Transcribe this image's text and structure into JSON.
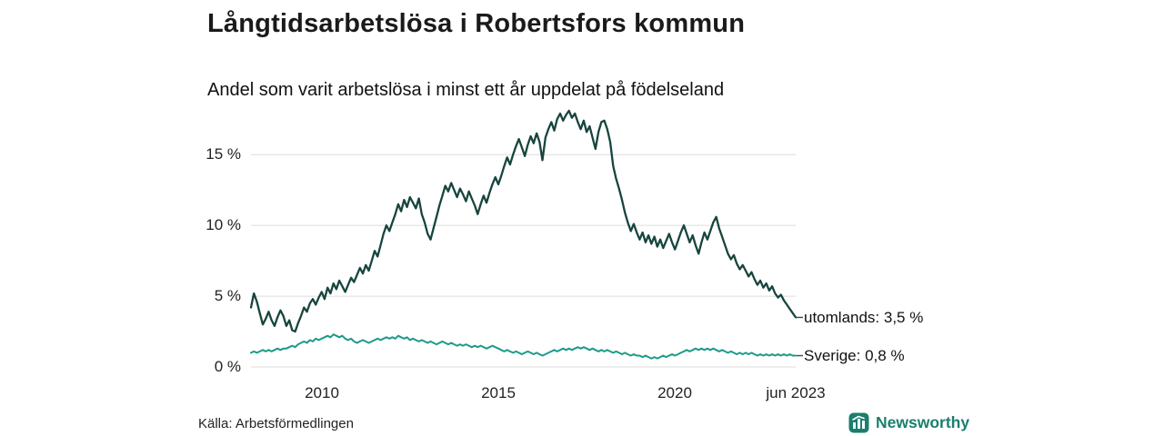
{
  "header": {
    "title": "Långtidsarbetslösa i Robertsfors kommun",
    "subtitle": "Andel som varit arbetslösa i minst ett år uppdelat på födelseland"
  },
  "footer": {
    "source": "Källa: Arbetsförmedlingen",
    "brand": "Newsworthy"
  },
  "colors": {
    "utomlands_line": "#17453e",
    "sverige_line": "#1d9a87",
    "grid": "#dcdcdc",
    "brand": "#1b7e6e",
    "end_tick": "#444444"
  },
  "chart_data": {
    "type": "line",
    "title": "Långtidsarbetslösa i Robertsfors kommun",
    "subtitle": "Andel som varit arbetslösa i minst ett år uppdelat på födelseland",
    "x_start": "2008-01",
    "x_end": "2023-06",
    "ylim": [
      0,
      18.35
    ],
    "grid": true,
    "y_ticks": [
      {
        "label": "0 %",
        "value": 0
      },
      {
        "label": "5 %",
        "value": 5
      },
      {
        "label": "10 %",
        "value": 10
      },
      {
        "label": "15 %",
        "value": 15
      }
    ],
    "x_ticks": [
      {
        "label": "2010",
        "index": 24
      },
      {
        "label": "2015",
        "index": 84
      },
      {
        "label": "2020",
        "index": 144
      },
      {
        "label": "jun 2023",
        "index": 185
      }
    ],
    "series": [
      {
        "name": "utomlands",
        "label": "utomlands: 3,5 %",
        "end_value": 3.5,
        "color": "#17453e",
        "values": [
          4.2,
          5.2,
          4.6,
          3.8,
          3.0,
          3.4,
          3.9,
          3.3,
          2.9,
          3.5,
          4.0,
          3.6,
          2.9,
          3.3,
          2.6,
          2.5,
          3.1,
          3.6,
          4.2,
          3.9,
          4.5,
          4.8,
          4.4,
          4.9,
          5.3,
          4.8,
          5.6,
          5.2,
          5.9,
          5.5,
          6.1,
          5.7,
          5.3,
          5.8,
          6.3,
          6.0,
          6.5,
          7.0,
          6.6,
          7.2,
          6.8,
          7.5,
          8.2,
          7.8,
          8.6,
          9.4,
          10.0,
          9.6,
          10.2,
          10.8,
          11.5,
          11.0,
          11.8,
          11.3,
          12.0,
          11.6,
          11.2,
          11.9,
          10.8,
          10.2,
          9.4,
          9.0,
          9.8,
          10.6,
          11.4,
          12.1,
          12.8,
          12.4,
          13.0,
          12.5,
          12.0,
          12.6,
          12.2,
          11.7,
          12.4,
          11.9,
          11.4,
          10.8,
          11.5,
          12.1,
          11.6,
          12.3,
          12.9,
          13.4,
          12.9,
          13.5,
          14.2,
          14.8,
          14.3,
          15.0,
          15.6,
          16.1,
          15.5,
          14.9,
          15.7,
          16.3,
          15.8,
          16.5,
          15.9,
          14.6,
          16.2,
          16.8,
          17.3,
          16.7,
          17.5,
          17.9,
          17.4,
          17.8,
          18.1,
          17.6,
          17.9,
          17.3,
          16.8,
          17.4,
          16.6,
          17.0,
          16.2,
          15.4,
          16.6,
          17.3,
          17.4,
          16.8,
          15.9,
          14.2,
          13.3,
          12.6,
          11.8,
          10.9,
          10.2,
          9.6,
          10.1,
          9.5,
          9.0,
          9.5,
          8.8,
          9.3,
          8.7,
          9.2,
          8.5,
          9.0,
          8.4,
          8.9,
          9.4,
          8.8,
          8.3,
          8.9,
          9.5,
          10.0,
          9.4,
          8.8,
          9.3,
          8.6,
          8.0,
          8.8,
          9.5,
          9.0,
          9.6,
          10.2,
          10.6,
          9.8,
          9.2,
          8.6,
          8.0,
          7.6,
          7.9,
          7.3,
          6.9,
          7.2,
          6.8,
          6.4,
          6.7,
          6.2,
          5.8,
          6.1,
          5.6,
          5.9,
          5.4,
          5.7,
          5.2,
          4.9,
          5.1,
          4.7,
          4.4,
          4.1,
          3.8,
          3.5
        ]
      },
      {
        "name": "Sverige",
        "label": "Sverige: 0,8 %",
        "end_value": 0.8,
        "color": "#1d9a87",
        "values": [
          1.0,
          1.1,
          1.0,
          1.1,
          1.2,
          1.1,
          1.2,
          1.1,
          1.2,
          1.3,
          1.2,
          1.3,
          1.3,
          1.4,
          1.5,
          1.4,
          1.6,
          1.7,
          1.8,
          1.7,
          1.9,
          1.8,
          2.0,
          1.9,
          2.0,
          2.1,
          2.2,
          2.1,
          2.3,
          2.2,
          2.1,
          2.2,
          2.0,
          1.9,
          2.0,
          1.8,
          1.7,
          1.8,
          1.9,
          1.8,
          1.7,
          1.8,
          1.9,
          2.0,
          1.9,
          2.0,
          2.1,
          2.0,
          2.1,
          2.0,
          2.2,
          2.1,
          2.0,
          2.1,
          1.9,
          2.0,
          1.9,
          1.8,
          1.9,
          1.8,
          1.7,
          1.8,
          1.7,
          1.6,
          1.7,
          1.8,
          1.7,
          1.6,
          1.7,
          1.6,
          1.5,
          1.6,
          1.5,
          1.6,
          1.5,
          1.4,
          1.5,
          1.4,
          1.5,
          1.4,
          1.3,
          1.4,
          1.5,
          1.4,
          1.3,
          1.2,
          1.1,
          1.2,
          1.1,
          1.0,
          1.1,
          1.0,
          0.9,
          1.0,
          1.1,
          1.0,
          0.9,
          1.0,
          0.9,
          0.8,
          0.9,
          1.0,
          1.1,
          1.2,
          1.1,
          1.2,
          1.3,
          1.2,
          1.3,
          1.2,
          1.3,
          1.4,
          1.3,
          1.4,
          1.3,
          1.2,
          1.3,
          1.2,
          1.1,
          1.2,
          1.1,
          1.2,
          1.1,
          1.0,
          1.1,
          1.0,
          0.9,
          1.0,
          0.9,
          0.8,
          0.9,
          0.8,
          0.8,
          0.7,
          0.8,
          0.7,
          0.6,
          0.7,
          0.6,
          0.7,
          0.8,
          0.7,
          0.8,
          0.9,
          0.8,
          0.9,
          1.0,
          1.1,
          1.2,
          1.1,
          1.2,
          1.3,
          1.2,
          1.3,
          1.2,
          1.3,
          1.2,
          1.3,
          1.2,
          1.1,
          1.2,
          1.1,
          1.0,
          1.1,
          1.0,
          0.9,
          1.0,
          0.9,
          1.0,
          0.9,
          1.0,
          0.9,
          0.8,
          0.9,
          0.8,
          0.9,
          0.8,
          0.9,
          0.8,
          0.9,
          0.8,
          0.9,
          0.8,
          0.9,
          0.8,
          0.8
        ]
      }
    ]
  }
}
